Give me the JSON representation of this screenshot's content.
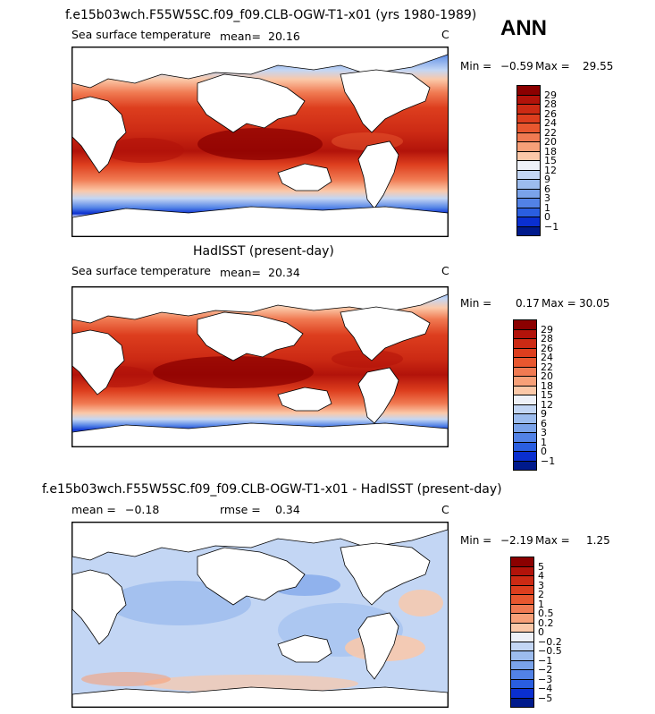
{
  "header": {
    "case_title": "f.e15b03wch.F55W5SC.f09_f09.CLB-OGW-T1-x01 (yrs 1980-1989)",
    "season": "ANN"
  },
  "panels": [
    {
      "id": "model",
      "field_label": "Sea surface temperature",
      "mean_label": "mean=",
      "mean_value": "20.16",
      "units": "C",
      "min_label": "Min =",
      "min_value": "−0.59",
      "max_label": "Max =",
      "max_value": "29.55"
    },
    {
      "id": "obs",
      "title": "HadISST (present-day)",
      "field_label": "Sea surface temperature",
      "mean_label": "mean=",
      "mean_value": "20.34",
      "units": "C",
      "min_label": "Min =",
      "min_value": "0.17",
      "max_label": "Max =",
      "max_value": "30.05"
    },
    {
      "id": "diff",
      "title": "f.e15b03wch.F55W5SC.f09_f09.CLB-OGW-T1-x01 - HadISST (present-day)",
      "mean_label": "mean =",
      "mean_value": "−0.18",
      "rmse_label": "rmse =",
      "rmse_value": "0.34",
      "units": "C",
      "min_label": "Min =",
      "min_value": "−2.19",
      "max_label": "Max =",
      "max_value": "1.25"
    }
  ],
  "chart_data": {
    "type": "heatmap",
    "colorbars": [
      {
        "panel": "model",
        "levels": [
          "29",
          "28",
          "26",
          "24",
          "22",
          "20",
          "18",
          "15",
          "12",
          "9",
          "6",
          "3",
          "1",
          "0",
          "−1"
        ],
        "colors": [
          "#8b0000",
          "#b2130a",
          "#cc2a14",
          "#dd3e1e",
          "#e8572f",
          "#f07a52",
          "#f7a078",
          "#fbc8a8",
          "#eef1f8",
          "#c3d6f4",
          "#9cbcee",
          "#7aa3ea",
          "#5282e6",
          "#2a5ee0",
          "#0a2fd0",
          "#001a8c"
        ]
      },
      {
        "panel": "obs",
        "levels": [
          "29",
          "28",
          "26",
          "24",
          "22",
          "20",
          "18",
          "15",
          "12",
          "9",
          "6",
          "3",
          "1",
          "0",
          "−1"
        ],
        "colors": [
          "#8b0000",
          "#b2130a",
          "#cc2a14",
          "#dd3e1e",
          "#e8572f",
          "#f07a52",
          "#f7a078",
          "#fbc8a8",
          "#eef1f8",
          "#c3d6f4",
          "#9cbcee",
          "#7aa3ea",
          "#5282e6",
          "#2a5ee0",
          "#0a2fd0",
          "#001a8c"
        ]
      },
      {
        "panel": "diff",
        "levels": [
          "5",
          "4",
          "3",
          "2",
          "1",
          "0.5",
          "0.2",
          "0",
          "−0.2",
          "−0.5",
          "−1",
          "−2",
          "−3",
          "−4",
          "−5"
        ],
        "colors": [
          "#8b0000",
          "#b2130a",
          "#cc2a14",
          "#dd3e1e",
          "#e8572f",
          "#f07a52",
          "#f7a078",
          "#fbc8a8",
          "#eef1f8",
          "#c3d6f4",
          "#9cbcee",
          "#7aa3ea",
          "#5282e6",
          "#2a5ee0",
          "#0a2fd0",
          "#001a8c"
        ]
      }
    ]
  }
}
